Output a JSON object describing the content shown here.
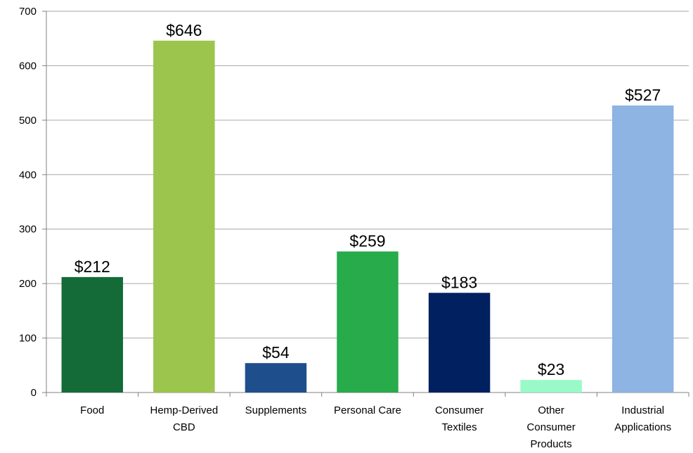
{
  "chart_data": {
    "type": "bar",
    "categories": [
      "Food",
      "Hemp-Derived CBD",
      "Supplements",
      "Personal Care",
      "Consumer Textiles",
      "Other Consumer Products",
      "Industrial Applications"
    ],
    "values": [
      212,
      646,
      54,
      259,
      183,
      23,
      527
    ],
    "value_labels": [
      "$212",
      "$646",
      "$54",
      "$259",
      "$183",
      "$23",
      "$527"
    ],
    "colors": [
      "#146b38",
      "#9bc54d",
      "#1f4e8c",
      "#27ab4b",
      "#002060",
      "#99fac8",
      "#8db4e2"
    ],
    "ylim": [
      0,
      700
    ],
    "yticks": [
      0,
      100,
      200,
      300,
      400,
      500,
      600,
      700
    ],
    "grid": true
  }
}
